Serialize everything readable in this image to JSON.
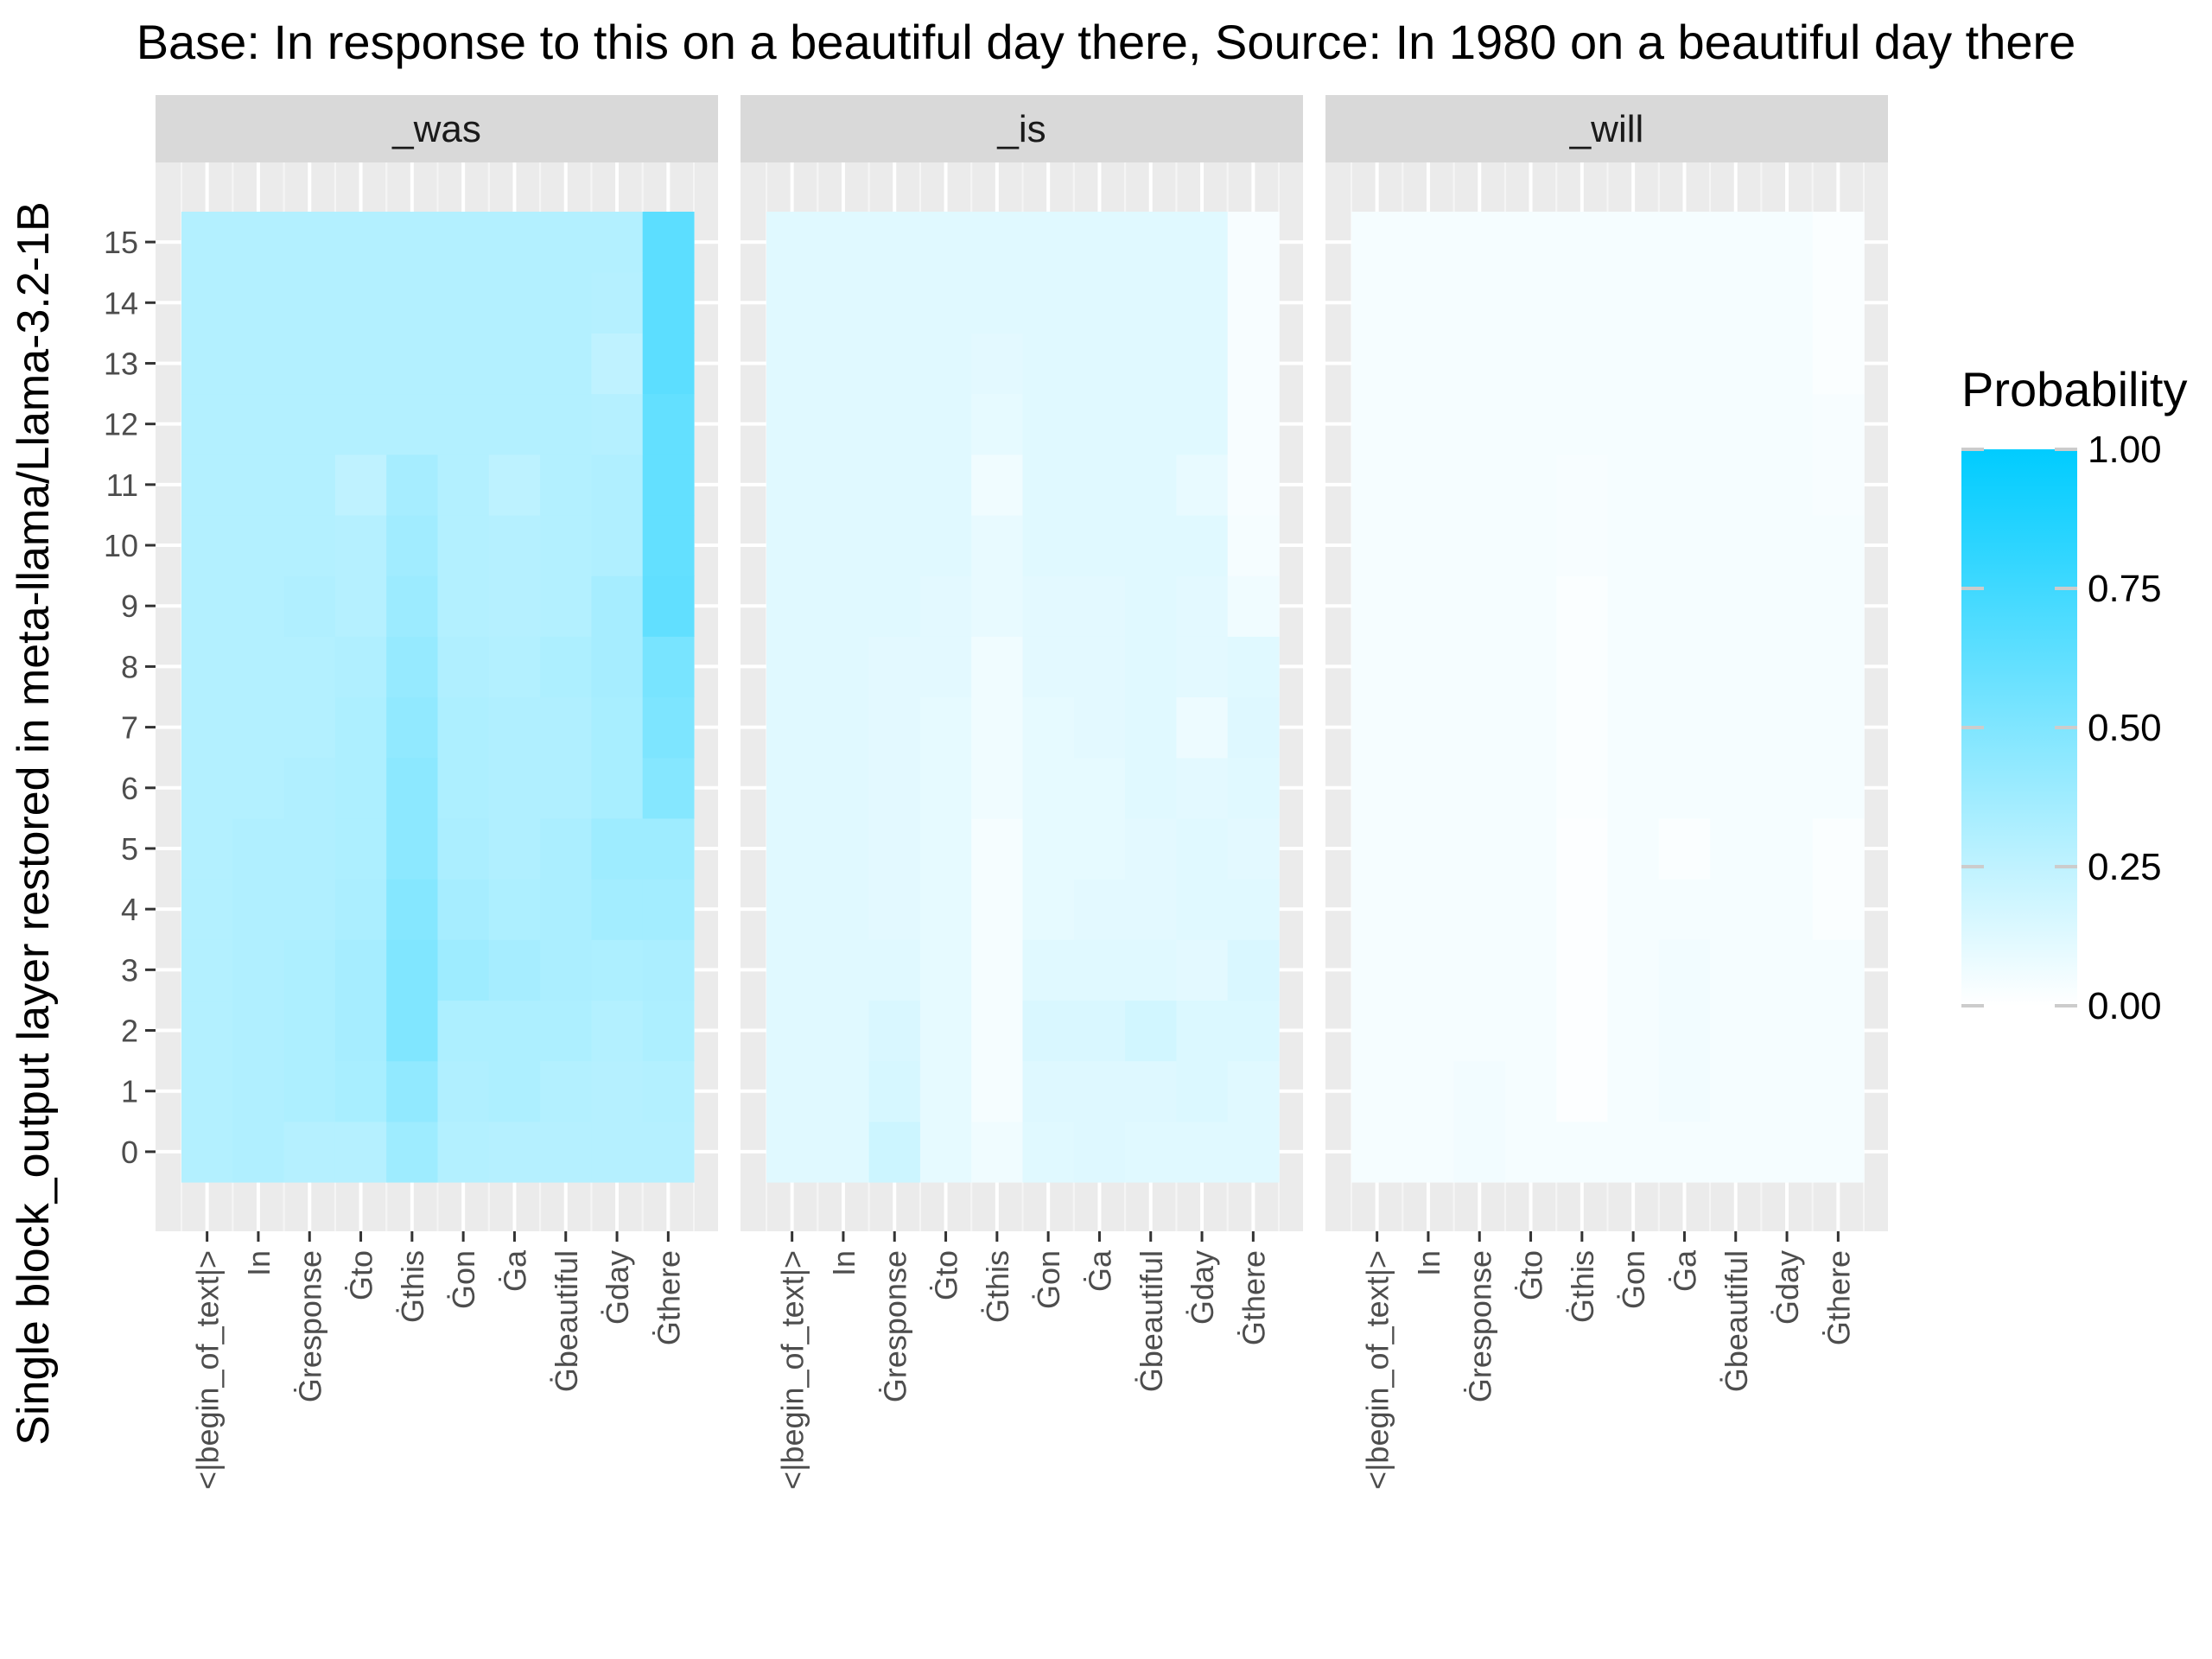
{
  "title": "Base: In response to this on a beautiful day there, Source: In 1980 on a beautiful day there",
  "chart_data": {
    "type": "heatmap",
    "title": "Base: In response to this on a beautiful day there, Source: In 1980 on a beautiful day there",
    "ylabel": "Single block_output layer restored in meta-llama/Llama-3.2-1B",
    "xlabel": "",
    "legend_title": "Probability",
    "legend_position": "right",
    "color_low": "#ffffff",
    "color_high": "#00ccff",
    "color_range": [
      0,
      1
    ],
    "legend_ticks": [
      "0.00",
      "0.25",
      "0.50",
      "0.75",
      "1.00"
    ],
    "legend_tick_values": [
      0,
      0.25,
      0.5,
      0.75,
      1
    ],
    "x_tokens": [
      "<|begin_of_text|>",
      "In",
      "Ġresponse",
      "Ġto",
      "Ġthis",
      "Ġon",
      "Ġa",
      "Ġbeautiful",
      "Ġday",
      "Ġthere"
    ],
    "y_layers": [
      0,
      1,
      2,
      3,
      4,
      5,
      6,
      7,
      8,
      9,
      10,
      11,
      12,
      13,
      14,
      15
    ],
    "panels": [
      {
        "name": "_was",
        "values": [
          [
            0.3,
            0.31,
            0.29,
            0.29,
            0.38,
            0.3,
            0.29,
            0.29,
            0.29,
            0.29
          ],
          [
            0.3,
            0.31,
            0.32,
            0.34,
            0.43,
            0.31,
            0.32,
            0.3,
            0.29,
            0.3
          ],
          [
            0.3,
            0.31,
            0.32,
            0.35,
            0.5,
            0.32,
            0.32,
            0.32,
            0.3,
            0.32
          ],
          [
            0.3,
            0.31,
            0.32,
            0.35,
            0.5,
            0.38,
            0.35,
            0.33,
            0.32,
            0.33
          ],
          [
            0.3,
            0.31,
            0.31,
            0.33,
            0.48,
            0.35,
            0.32,
            0.33,
            0.36,
            0.36
          ],
          [
            0.3,
            0.31,
            0.31,
            0.32,
            0.45,
            0.33,
            0.31,
            0.33,
            0.38,
            0.38
          ],
          [
            0.3,
            0.3,
            0.31,
            0.32,
            0.45,
            0.32,
            0.31,
            0.31,
            0.34,
            0.48
          ],
          [
            0.3,
            0.3,
            0.3,
            0.32,
            0.43,
            0.32,
            0.31,
            0.31,
            0.34,
            0.51
          ],
          [
            0.3,
            0.3,
            0.3,
            0.31,
            0.41,
            0.31,
            0.3,
            0.32,
            0.35,
            0.53
          ],
          [
            0.3,
            0.3,
            0.31,
            0.29,
            0.39,
            0.3,
            0.29,
            0.3,
            0.35,
            0.62
          ],
          [
            0.3,
            0.3,
            0.3,
            0.29,
            0.37,
            0.3,
            0.29,
            0.3,
            0.31,
            0.61
          ],
          [
            0.3,
            0.3,
            0.3,
            0.25,
            0.35,
            0.3,
            0.26,
            0.3,
            0.31,
            0.61
          ],
          [
            0.3,
            0.3,
            0.3,
            0.3,
            0.3,
            0.3,
            0.3,
            0.3,
            0.29,
            0.61
          ],
          [
            0.3,
            0.3,
            0.3,
            0.3,
            0.3,
            0.3,
            0.3,
            0.3,
            0.25,
            0.64
          ],
          [
            0.3,
            0.3,
            0.3,
            0.3,
            0.3,
            0.3,
            0.3,
            0.3,
            0.29,
            0.64
          ],
          [
            0.3,
            0.3,
            0.3,
            0.3,
            0.3,
            0.3,
            0.3,
            0.3,
            0.3,
            0.64
          ]
        ]
      },
      {
        "name": "_is",
        "values": [
          [
            0.12,
            0.12,
            0.2,
            0.1,
            0.06,
            0.12,
            0.13,
            0.12,
            0.12,
            0.12
          ],
          [
            0.12,
            0.12,
            0.16,
            0.1,
            0.04,
            0.13,
            0.13,
            0.13,
            0.14,
            0.12
          ],
          [
            0.12,
            0.12,
            0.15,
            0.1,
            0.04,
            0.15,
            0.15,
            0.18,
            0.14,
            0.14
          ],
          [
            0.12,
            0.12,
            0.12,
            0.1,
            0.04,
            0.12,
            0.12,
            0.12,
            0.11,
            0.15
          ],
          [
            0.12,
            0.12,
            0.11,
            0.1,
            0.04,
            0.1,
            0.11,
            0.11,
            0.12,
            0.12
          ],
          [
            0.12,
            0.12,
            0.11,
            0.1,
            0.04,
            0.1,
            0.1,
            0.11,
            0.12,
            0.11
          ],
          [
            0.12,
            0.12,
            0.11,
            0.1,
            0.06,
            0.1,
            0.1,
            0.12,
            0.11,
            0.12
          ],
          [
            0.12,
            0.12,
            0.11,
            0.1,
            0.06,
            0.1,
            0.11,
            0.12,
            0.07,
            0.13
          ],
          [
            0.12,
            0.12,
            0.11,
            0.11,
            0.06,
            0.11,
            0.11,
            0.12,
            0.11,
            0.12
          ],
          [
            0.12,
            0.12,
            0.12,
            0.11,
            0.09,
            0.11,
            0.11,
            0.12,
            0.11,
            0.06
          ],
          [
            0.12,
            0.12,
            0.12,
            0.12,
            0.09,
            0.12,
            0.12,
            0.12,
            0.12,
            0.04
          ],
          [
            0.12,
            0.12,
            0.12,
            0.12,
            0.06,
            0.12,
            0.12,
            0.12,
            0.09,
            0.03
          ],
          [
            0.12,
            0.12,
            0.12,
            0.12,
            0.1,
            0.12,
            0.12,
            0.12,
            0.12,
            0.03
          ],
          [
            0.12,
            0.12,
            0.12,
            0.12,
            0.11,
            0.12,
            0.12,
            0.12,
            0.12,
            0.03
          ],
          [
            0.12,
            0.12,
            0.12,
            0.12,
            0.12,
            0.12,
            0.12,
            0.12,
            0.12,
            0.03
          ],
          [
            0.12,
            0.12,
            0.12,
            0.12,
            0.12,
            0.12,
            0.12,
            0.12,
            0.12,
            0.03
          ]
        ]
      },
      {
        "name": "_will",
        "values": [
          [
            0.04,
            0.04,
            0.05,
            0.04,
            0.04,
            0.04,
            0.04,
            0.04,
            0.04,
            0.04
          ],
          [
            0.04,
            0.04,
            0.05,
            0.04,
            0.01,
            0.04,
            0.05,
            0.04,
            0.04,
            0.04
          ],
          [
            0.04,
            0.04,
            0.04,
            0.04,
            0.01,
            0.04,
            0.05,
            0.04,
            0.04,
            0.04
          ],
          [
            0.04,
            0.04,
            0.04,
            0.04,
            0.01,
            0.04,
            0.05,
            0.04,
            0.04,
            0.04
          ],
          [
            0.04,
            0.04,
            0.04,
            0.04,
            0.01,
            0.04,
            0.04,
            0.04,
            0.04,
            0.02
          ],
          [
            0.04,
            0.04,
            0.04,
            0.04,
            0.01,
            0.04,
            0.02,
            0.04,
            0.04,
            0.02
          ],
          [
            0.04,
            0.04,
            0.04,
            0.04,
            0.02,
            0.04,
            0.04,
            0.04,
            0.04,
            0.04
          ],
          [
            0.04,
            0.04,
            0.04,
            0.04,
            0.02,
            0.04,
            0.04,
            0.04,
            0.04,
            0.04
          ],
          [
            0.04,
            0.04,
            0.04,
            0.04,
            0.02,
            0.04,
            0.04,
            0.04,
            0.04,
            0.04
          ],
          [
            0.04,
            0.04,
            0.04,
            0.04,
            0.02,
            0.04,
            0.04,
            0.04,
            0.04,
            0.04
          ],
          [
            0.04,
            0.04,
            0.04,
            0.04,
            0.03,
            0.04,
            0.04,
            0.04,
            0.04,
            0.04
          ],
          [
            0.04,
            0.04,
            0.04,
            0.04,
            0.03,
            0.04,
            0.04,
            0.04,
            0.04,
            0.03
          ],
          [
            0.04,
            0.04,
            0.04,
            0.04,
            0.04,
            0.04,
            0.04,
            0.04,
            0.04,
            0.03
          ],
          [
            0.04,
            0.04,
            0.04,
            0.04,
            0.04,
            0.04,
            0.04,
            0.04,
            0.04,
            0.02
          ],
          [
            0.04,
            0.04,
            0.04,
            0.04,
            0.04,
            0.04,
            0.04,
            0.04,
            0.04,
            0.02
          ],
          [
            0.04,
            0.04,
            0.04,
            0.04,
            0.04,
            0.04,
            0.04,
            0.04,
            0.04,
            0.02
          ]
        ]
      }
    ]
  }
}
